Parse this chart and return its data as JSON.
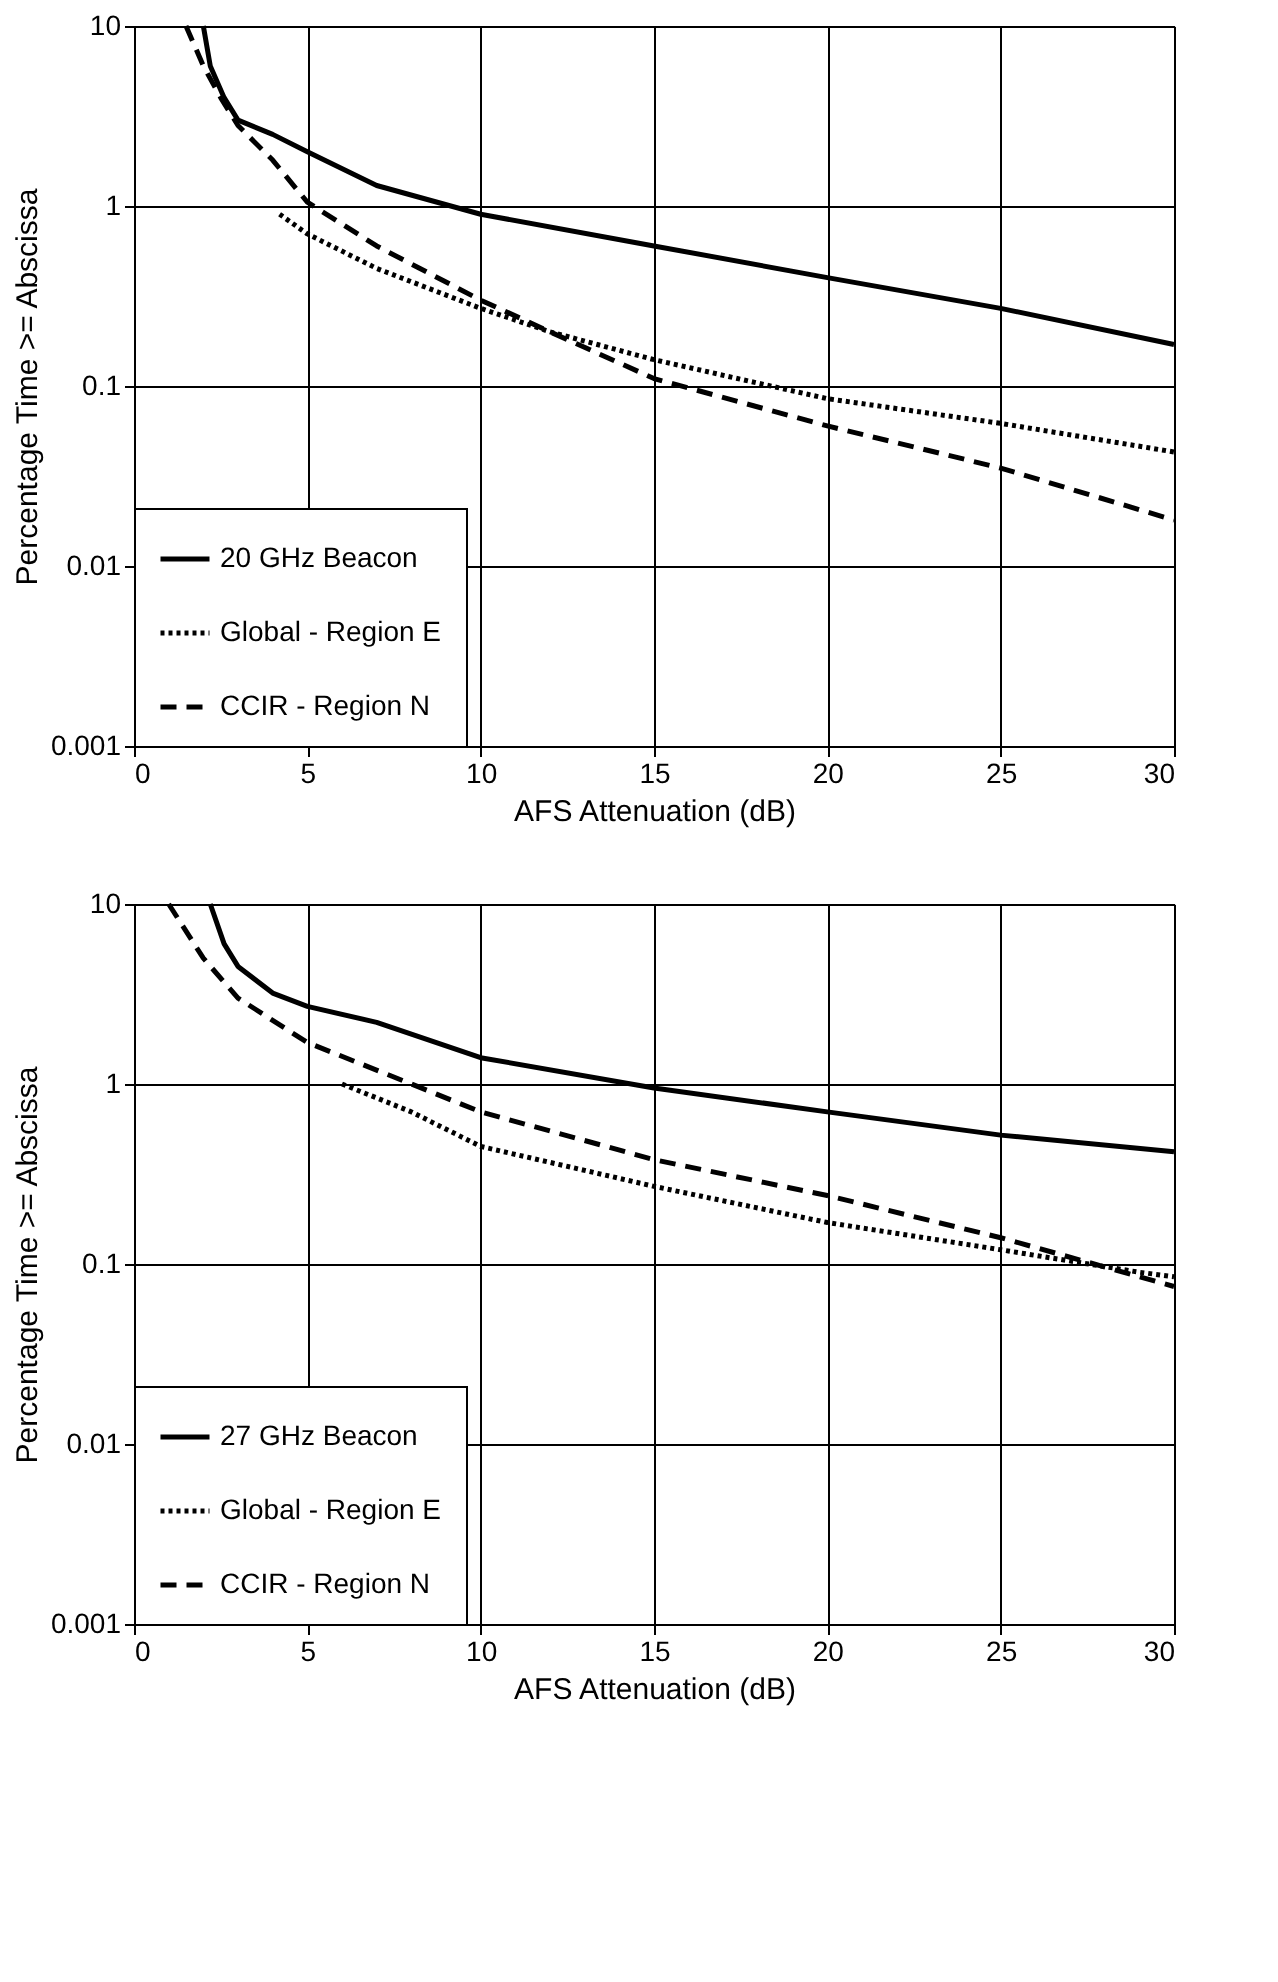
{
  "chart_data": [
    {
      "type": "line",
      "xlabel": "AFS Attenuation (dB)",
      "ylabel": "Percentage Time >= Abscissa",
      "log": "y",
      "grid": true,
      "legend": "bottom left",
      "marker": "none",
      "xlim": [
        0,
        30
      ],
      "xticks": [
        0,
        5,
        10,
        15,
        20,
        25,
        30
      ],
      "ylim": [
        0.001,
        10
      ],
      "yticks": [
        0.001,
        0.01,
        0.1,
        1,
        10
      ],
      "series": [
        {
          "name": "20 GHz Beacon",
          "color": "#000000",
          "line_style": "solid",
          "x": [
            2.0,
            2.2,
            2.6,
            3,
            4,
            5,
            7,
            10,
            15,
            20,
            25,
            30
          ],
          "values": [
            10,
            6,
            4,
            3,
            2.5,
            2.0,
            1.3,
            0.9,
            0.6,
            0.4,
            0.27,
            0.17
          ]
        },
        {
          "name": "Global - Region E",
          "color": "#000000",
          "line_style": "dotted",
          "x": [
            4.2,
            5,
            7,
            10,
            12,
            15,
            20,
            25,
            30
          ],
          "values": [
            0.9,
            0.7,
            0.45,
            0.27,
            0.2,
            0.14,
            0.085,
            0.062,
            0.043
          ]
        },
        {
          "name": "CCIR - Region N",
          "color": "#000000",
          "line_style": "dashed",
          "x": [
            1.5,
            2,
            2.5,
            3,
            4,
            5,
            7,
            10,
            12,
            15,
            20,
            25,
            30
          ],
          "values": [
            10,
            6,
            4,
            2.8,
            1.8,
            1.05,
            0.6,
            0.3,
            0.2,
            0.11,
            0.06,
            0.035,
            0.018
          ]
        }
      ]
    },
    {
      "type": "line",
      "xlabel": "AFS Attenuation (dB)",
      "ylabel": "Percentage Time >= Abscissa",
      "log": "y",
      "grid": true,
      "legend": "bottom left",
      "marker": "none",
      "xlim": [
        0,
        30
      ],
      "xticks": [
        0,
        5,
        10,
        15,
        20,
        25,
        30
      ],
      "ylim": [
        0.001,
        10
      ],
      "yticks": [
        0.001,
        0.01,
        0.1,
        1,
        10
      ],
      "series": [
        {
          "name": "27 GHz Beacon",
          "color": "#000000",
          "line_style": "solid",
          "x": [
            2.2,
            2.6,
            3,
            4,
            5,
            7,
            10,
            15,
            20,
            25,
            30
          ],
          "values": [
            10,
            6,
            4.5,
            3.2,
            2.7,
            2.2,
            1.4,
            0.95,
            0.7,
            0.52,
            0.42
          ]
        },
        {
          "name": "Global - Region E",
          "color": "#000000",
          "line_style": "dotted",
          "x": [
            6,
            8,
            10,
            15,
            20,
            25,
            29,
            30
          ],
          "values": [
            1.0,
            0.7,
            0.45,
            0.27,
            0.17,
            0.12,
            0.09,
            0.085
          ]
        },
        {
          "name": "CCIR - Region N",
          "color": "#000000",
          "line_style": "dashed",
          "x": [
            1,
            2,
            3,
            5,
            8,
            10,
            15,
            20,
            25,
            30
          ],
          "values": [
            10,
            5,
            3,
            1.7,
            1.0,
            0.7,
            0.38,
            0.24,
            0.14,
            0.075
          ]
        }
      ]
    }
  ]
}
